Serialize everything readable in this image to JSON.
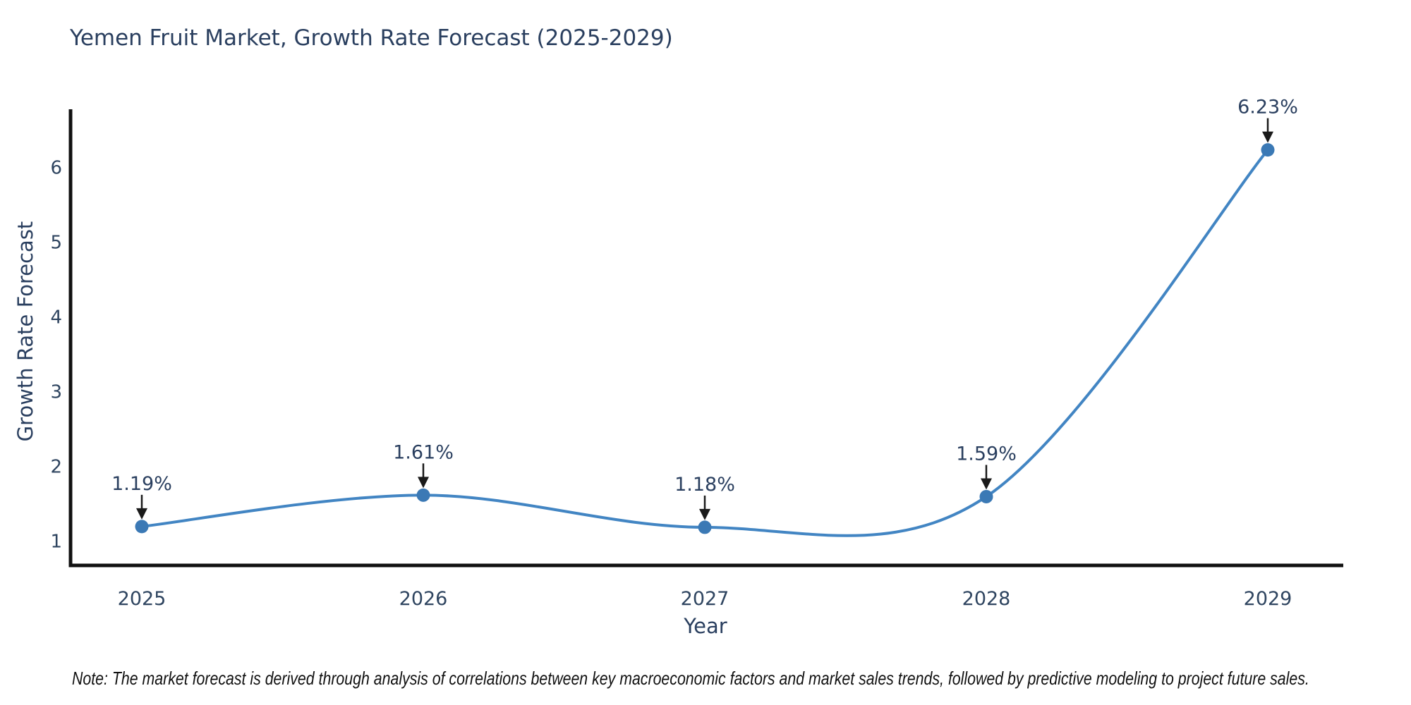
{
  "title": "Yemen Fruit Market, Growth Rate Forecast (2025-2029)",
  "note": "Note: The market forecast is derived through analysis of correlations between key macroeconomic factors and market sales trends, followed by predictive modeling to project future sales.",
  "colors": {
    "title": "#2a3f5f",
    "tick_labels": "#2f4560",
    "axis_line": "#111111",
    "trend_line": "#4285c3",
    "marker": "#3b79b5",
    "annotation_text": "#2a3f5f",
    "annotation_arrow": "#1a1a1a",
    "background": "#ffffff"
  },
  "chart_data": {
    "type": "line",
    "title": "Yemen Fruit Market, Growth Rate Forecast (2025-2029)",
    "xlabel": "Year",
    "ylabel": "Growth Rate Forecast",
    "x": [
      2025,
      2026,
      2027,
      2028,
      2029
    ],
    "y": [
      1.19,
      1.61,
      1.18,
      1.59,
      6.23
    ],
    "point_labels": [
      "1.19%",
      "1.61%",
      "1.18%",
      "1.59%",
      "6.23%"
    ],
    "xticks": [
      "2025",
      "2026",
      "2027",
      "2028",
      "2029"
    ],
    "yticks": [
      1,
      2,
      3,
      4,
      5,
      6
    ],
    "xlim": [
      2024.74,
      2029.27
    ],
    "ylim": [
      0.65,
      6.76
    ],
    "line_shape": "spline",
    "grid": false,
    "legend": false,
    "annotations": "each data point labeled with percentage and downward arrow"
  }
}
